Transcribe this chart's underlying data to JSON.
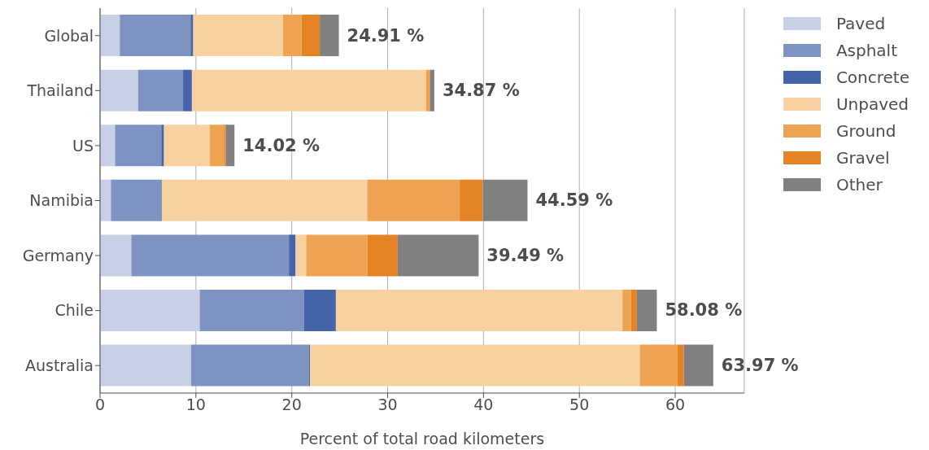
{
  "chart_data": {
    "type": "bar",
    "orientation": "horizontal",
    "stacked": true,
    "xlabel": "Percent of total road kilometers",
    "categories": [
      "Global",
      "Thailand",
      "US",
      "Namibia",
      "Germany",
      "Chile",
      "Australia"
    ],
    "series": [
      {
        "name": "Paved",
        "color": "#c7d0e5",
        "values": [
          2.06,
          3.97,
          1.56,
          1.13,
          3.26,
          10.4,
          9.5
        ]
      },
      {
        "name": "Asphalt",
        "color": "#7f93c3",
        "values": [
          7.38,
          4.69,
          4.83,
          5.32,
          16.44,
          10.9,
          12.3
        ]
      },
      {
        "name": "Concrete",
        "color": "#4565ab",
        "values": [
          0.28,
          0.92,
          0.28,
          0,
          0.7,
          3.3,
          0.1
        ]
      },
      {
        "name": "Unpaved",
        "color": "#f7d2a0",
        "values": [
          9.37,
          24.42,
          4.76,
          21.42,
          1.1,
          29.9,
          34.4
        ]
      },
      {
        "name": "Ground",
        "color": "#eda352",
        "values": [
          1.92,
          0.37,
          1.56,
          9.65,
          6.4,
          0.9,
          3.9
        ]
      },
      {
        "name": "Gravel",
        "color": "#e38324",
        "values": [
          1.91,
          0.05,
          0.14,
          2.41,
          3.15,
          0.6,
          0.7
        ]
      },
      {
        "name": "Other",
        "color": "#808080",
        "values": [
          1.99,
          0.45,
          0.89,
          4.66,
          8.44,
          2.08,
          3.07
        ]
      }
    ],
    "totals": [
      "24.91 %",
      "34.87 %",
      "14.02 %",
      "44.59 %",
      "39.49 %",
      "58.08 %",
      "63.97 %"
    ],
    "xlim": [
      0,
      67.2
    ],
    "xticks": [
      0,
      10,
      20,
      30,
      40,
      50,
      60
    ],
    "grid": "x",
    "legend": "top right"
  }
}
